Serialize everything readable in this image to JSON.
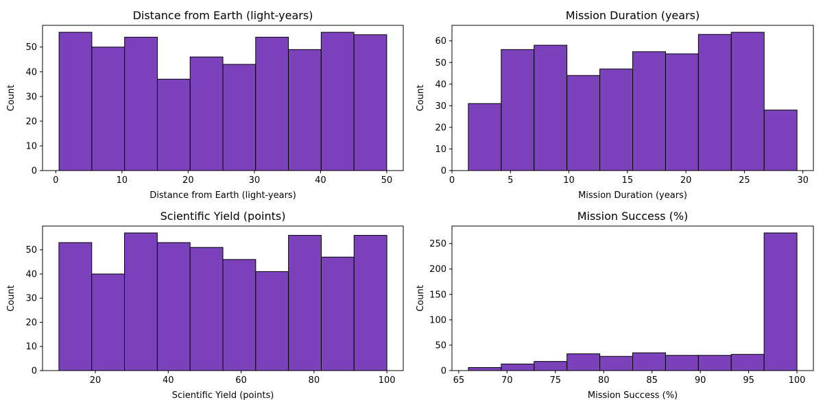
{
  "colors": {
    "bar_fill": "#7B42BC",
    "bar_edge": "#000000",
    "axis": "#000000",
    "background": "#ffffff"
  },
  "chart_data": [
    {
      "type": "bar",
      "title": "Distance from Earth (light-years)",
      "xlabel": "Distance from Earth (light-years)",
      "ylabel": "Count",
      "bin_edges": [
        0.5,
        5.45,
        10.4,
        15.35,
        20.3,
        25.25,
        30.2,
        35.15,
        40.1,
        45.05,
        50.0
      ],
      "values": [
        56,
        50,
        54,
        37,
        46,
        43,
        54,
        49,
        56,
        55
      ],
      "xlim": [
        -2.0,
        52.5
      ],
      "ylim": [
        0,
        58.8
      ],
      "xticks": [
        0,
        10,
        20,
        30,
        40,
        50
      ],
      "yticks": [
        0,
        10,
        20,
        30,
        40,
        50
      ],
      "grid": false
    },
    {
      "type": "bar",
      "title": "Mission Duration (years)",
      "xlabel": "Mission Duration (years)",
      "ylabel": "Count",
      "bin_edges": [
        1.4,
        4.21,
        7.02,
        9.83,
        12.64,
        15.45,
        18.26,
        21.07,
        23.88,
        26.69,
        29.5
      ],
      "values": [
        31,
        56,
        58,
        44,
        47,
        55,
        54,
        63,
        64,
        28
      ],
      "xlim": [
        0,
        30.9
      ],
      "ylim": [
        0,
        67.2
      ],
      "xticks": [
        0,
        5,
        10,
        15,
        20,
        25,
        30
      ],
      "yticks": [
        0,
        10,
        20,
        30,
        40,
        50,
        60
      ],
      "grid": false
    },
    {
      "type": "bar",
      "title": "Scientific Yield (points)",
      "xlabel": "Scientific Yield (points)",
      "ylabel": "Count",
      "bin_edges": [
        10.0,
        19.0,
        28.0,
        37.0,
        46.0,
        55.0,
        64.0,
        73.0,
        82.0,
        91.0,
        100.0
      ],
      "values": [
        53,
        40,
        57,
        53,
        51,
        46,
        41,
        56,
        47,
        56
      ],
      "xlim": [
        5.5,
        104.5
      ],
      "ylim": [
        0,
        59.85
      ],
      "xticks": [
        20,
        40,
        60,
        80,
        100
      ],
      "yticks": [
        0,
        10,
        20,
        30,
        40,
        50
      ],
      "grid": false
    },
    {
      "type": "bar",
      "title": "Mission Success (%)",
      "xlabel": "Mission Success (%)",
      "ylabel": "Count",
      "bin_edges": [
        66.0,
        69.4,
        72.8,
        76.2,
        79.6,
        83.0,
        86.4,
        89.8,
        93.2,
        96.6,
        100.0
      ],
      "values": [
        6,
        13,
        18,
        33,
        28,
        35,
        30,
        30,
        32,
        271
      ],
      "xlim": [
        64.3,
        101.7
      ],
      "ylim": [
        0,
        284.55
      ],
      "xticks": [
        65,
        70,
        75,
        80,
        85,
        90,
        95,
        100
      ],
      "yticks": [
        0,
        50,
        100,
        150,
        200,
        250
      ],
      "grid": false
    }
  ]
}
